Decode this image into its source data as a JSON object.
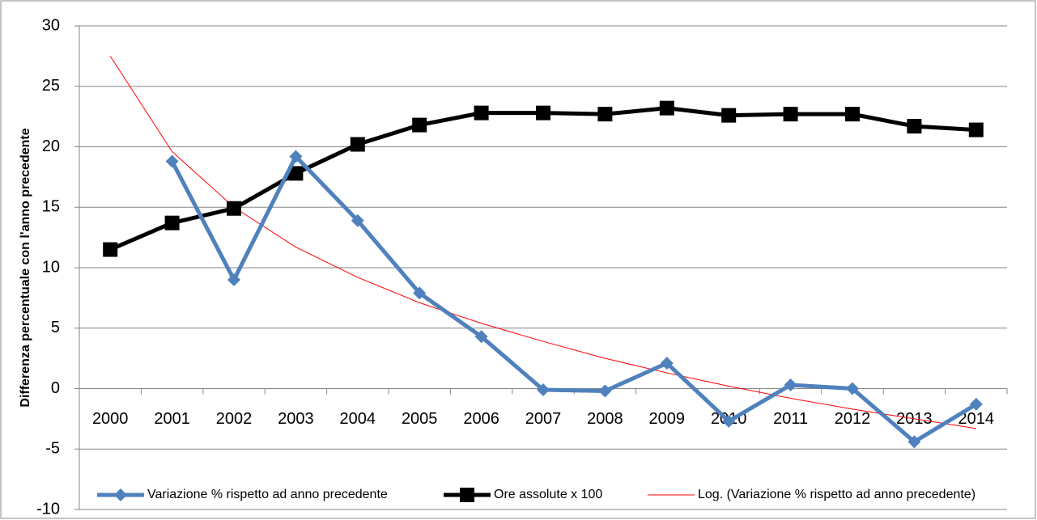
{
  "chart_data": {
    "type": "line",
    "y_label": "Differenza percentuale con l'anno precedente",
    "categories": [
      "2000",
      "2001",
      "2002",
      "2003",
      "2004",
      "2005",
      "2006",
      "2007",
      "2008",
      "2009",
      "2010",
      "2011",
      "2012",
      "2013",
      "2014"
    ],
    "series": [
      {
        "name": "Variazione % rispetto ad anno precedente",
        "color": "#4f81bd",
        "marker": "diamond",
        "width": 5,
        "values": [
          null,
          18.8,
          9.0,
          19.2,
          13.9,
          7.9,
          4.3,
          -0.1,
          -0.2,
          2.1,
          -2.7,
          0.3,
          0.0,
          -4.4,
          -1.3
        ]
      },
      {
        "name": "Ore assolute x 100",
        "color": "#000000",
        "marker": "square",
        "width": 5,
        "values": [
          11.5,
          13.7,
          14.9,
          17.8,
          20.2,
          21.8,
          22.8,
          22.8,
          22.7,
          23.2,
          22.6,
          22.7,
          22.7,
          21.7,
          21.4
        ]
      },
      {
        "name": "Log. (Variazione % rispetto ad anno precedente)",
        "color": "#ff0000",
        "marker": "none",
        "width": 1,
        "values": [
          27.5,
          19.6,
          15.0,
          11.7,
          9.2,
          7.1,
          5.4,
          3.9,
          2.5,
          1.3,
          0.2,
          -0.8,
          -1.7,
          -2.5,
          -3.3
        ]
      }
    ],
    "ylim": [
      -10,
      30
    ],
    "yticks": [
      -10,
      -5,
      0,
      5,
      10,
      15,
      20,
      25,
      30
    ],
    "grid": true,
    "legend": "bottom"
  }
}
